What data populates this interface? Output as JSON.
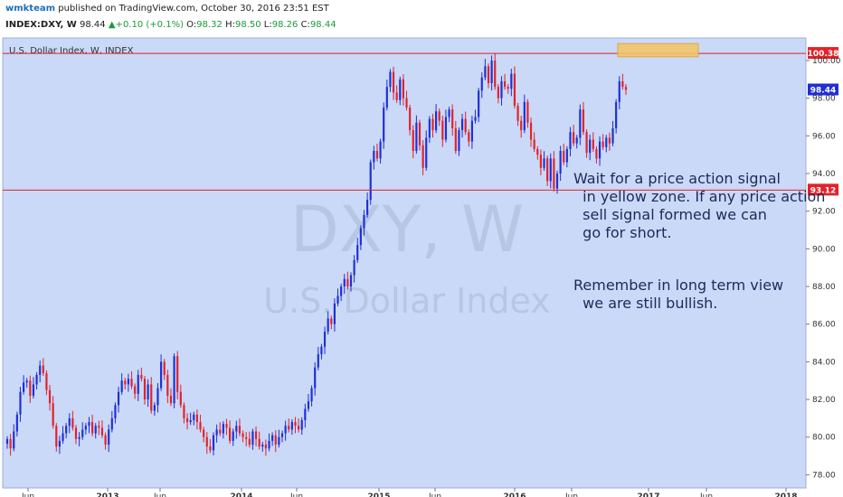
{
  "header": {
    "user": "wmkteam",
    "published": " published on TradingView.com, October 30, 2016 23:51 EST",
    "symbol": "INDEX:DXY, W",
    "last": "98.44",
    "change": "+0.10 (+0.1%)",
    "o_label": "O:",
    "o_val": "98.32",
    "h_label": "H:",
    "h_val": "98.50",
    "l_label": "L:",
    "l_val": "98.26",
    "c_label": "C:",
    "c_val": "98.44"
  },
  "colors": {
    "background": "#c9d9f7",
    "up": "#1f2fd6",
    "down": "#e2222a",
    "level_line": "#e2222a",
    "zone": "#f5c462",
    "watermark": "#b6c6e3"
  },
  "chart_data": {
    "type": "candlestick",
    "title": "U.S. Dollar Index, W, INDEX",
    "watermark_symbol": "DXY, W",
    "watermark_name": "U.S. Dollar Index",
    "y_ticks": [
      78.0,
      80.0,
      82.0,
      84.0,
      86.0,
      88.0,
      90.0,
      92.0,
      94.0,
      96.0,
      98.0,
      100.0
    ],
    "ylim": [
      77.3,
      101.2
    ],
    "x_tick_labels": [
      "Jun",
      "2013",
      "Jun",
      "2014",
      "Jun",
      "2015",
      "Jun",
      "2016",
      "Jun",
      "2017",
      "Jun",
      "2018"
    ],
    "x_tick_bold": [
      false,
      true,
      false,
      true,
      false,
      true,
      false,
      true,
      false,
      true,
      false,
      true
    ],
    "price_labels": {
      "resistance": "100.38",
      "current": "98.44",
      "support": "93.12"
    },
    "levels": [
      {
        "name": "resistance",
        "value": 100.38
      },
      {
        "name": "support",
        "value": 93.12
      }
    ],
    "zone": {
      "low": 100.2,
      "high": 100.9
    },
    "series_close": [
      79.9,
      79.4,
      80.3,
      81.2,
      82.4,
      82.9,
      83.0,
      82.2,
      82.8,
      83.3,
      83.8,
      83.4,
      82.5,
      81.8,
      80.6,
      79.5,
      79.8,
      80.2,
      80.6,
      81.0,
      80.5,
      79.9,
      80.0,
      80.4,
      80.6,
      80.8,
      80.2,
      80.6,
      80.5,
      80.1,
      79.6,
      80.4,
      81.0,
      81.7,
      82.4,
      83.0,
      82.8,
      83.1,
      82.7,
      82.3,
      83.3,
      83.1,
      82.0,
      82.8,
      81.4,
      81.7,
      82.6,
      84.0,
      83.3,
      82.2,
      81.8,
      84.3,
      82.4,
      81.7,
      81.0,
      80.8,
      80.9,
      81.2,
      80.8,
      80.4,
      80.0,
      79.5,
      79.3,
      80.1,
      80.4,
      80.2,
      80.7,
      80.5,
      79.8,
      80.3,
      80.6,
      80.2,
      80.0,
      79.9,
      79.6,
      80.3,
      79.9,
      79.5,
      79.6,
      79.4,
      79.8,
      80.1,
      79.6,
      80.0,
      80.2,
      80.6,
      80.4,
      80.8,
      80.6,
      80.4,
      80.9,
      81.5,
      81.9,
      82.6,
      83.7,
      84.4,
      84.8,
      85.6,
      86.3,
      86.0,
      87.1,
      87.5,
      88.0,
      88.4,
      88.0,
      88.6,
      89.4,
      90.2,
      91.1,
      91.8,
      92.6,
      94.6,
      95.2,
      94.8,
      95.7,
      97.5,
      98.6,
      99.4,
      98.3,
      97.9,
      99.0,
      98.0,
      97.5,
      96.3,
      95.2,
      96.7,
      95.5,
      94.3,
      95.9,
      96.9,
      96.3,
      97.3,
      96.8,
      95.8,
      97.0,
      97.4,
      96.4,
      95.2,
      96.3,
      96.9,
      96.2,
      95.7,
      96.8,
      97.0,
      98.4,
      99.1,
      99.7,
      98.8,
      100.0,
      98.6,
      98.0,
      98.9,
      98.6,
      98.5,
      99.3,
      97.6,
      96.8,
      96.3,
      97.8,
      96.7,
      95.8,
      95.3,
      95.0,
      94.3,
      94.8,
      93.6,
      94.8,
      93.2,
      94.0,
      95.2,
      94.6,
      95.3,
      96.2,
      95.6,
      95.9,
      97.4,
      96.2,
      95.1,
      95.8,
      95.3,
      94.8,
      95.7,
      95.4,
      95.9,
      95.6,
      96.4,
      97.8,
      98.9,
      98.6,
      98.44
    ]
  },
  "annotation": {
    "para1": "Wait for a price action signal\n  in yellow zone. If any price action\n  sell signal formed we can\n  go for short.",
    "para2": "Remember in long term view\n  we are still bullish."
  }
}
